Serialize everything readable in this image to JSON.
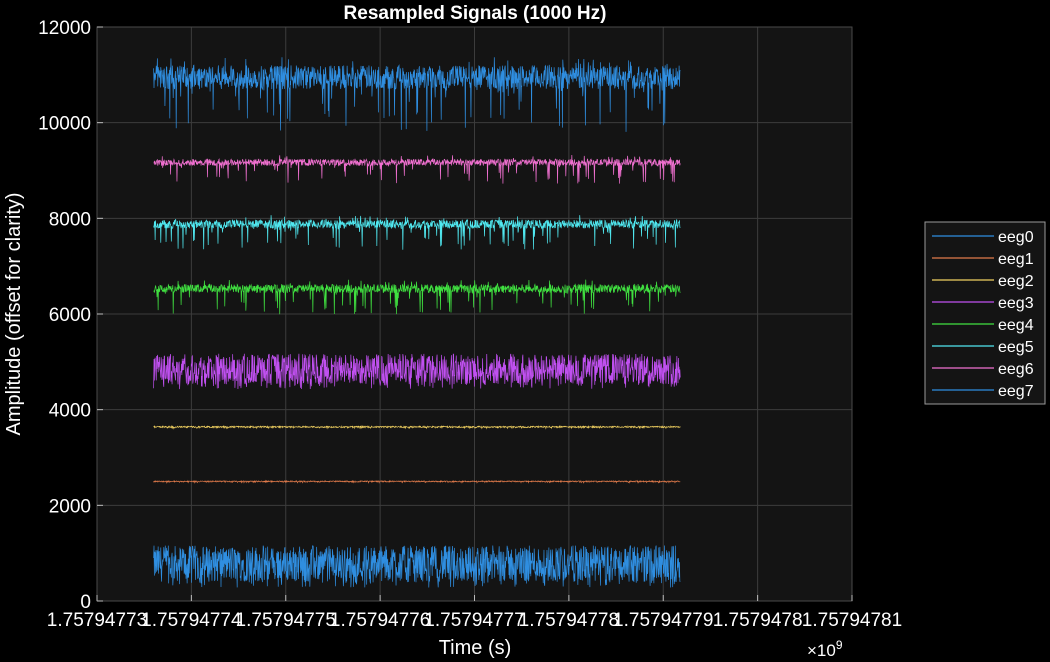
{
  "chart_data": {
    "type": "line",
    "title": "Resampled Signals (1000 Hz)",
    "xlabel": "Time (s)",
    "ylabel": "Amplitude (offset for clarity)",
    "x_exponent_label": "×10",
    "x_exponent_power": "9",
    "xlim": [
      1.75794773,
      1.75794781
    ],
    "ylim": [
      0,
      12000
    ],
    "x_ticks": [
      1.75794773,
      1.75794774,
      1.75794775,
      1.75794776,
      1.75794777,
      1.75794778,
      1.75794779,
      1.7579478,
      1.75794781
    ],
    "x_tick_labels": [
      "1.75794773",
      "1.75794774",
      "1.75794775",
      "1.75794776",
      "1.75794777",
      "1.75794778",
      "1.75794779",
      "1.7579478",
      "1.75794781"
    ],
    "y_ticks": [
      0,
      2000,
      4000,
      6000,
      8000,
      10000,
      12000
    ],
    "y_tick_labels": [
      "0",
      "2000",
      "4000",
      "6000",
      "8000",
      "10000",
      "12000"
    ],
    "x_data_range": [
      1.757947736,
      1.7579477918
    ],
    "grid": true,
    "background": "#141414",
    "legend_position": "outside-right",
    "series": [
      {
        "name": "eeg0",
        "color": "#2f8ee0",
        "center": 780,
        "spread": 380,
        "dip": 120
      },
      {
        "name": "eeg1",
        "color": "#e07a4a",
        "center": 2500,
        "spread": 12,
        "dip": 15
      },
      {
        "name": "eeg2",
        "color": "#f0d060",
        "center": 3640,
        "spread": 15,
        "dip": 15
      },
      {
        "name": "eeg3",
        "color": "#c050f0",
        "center": 4850,
        "spread": 320,
        "dip": 100
      },
      {
        "name": "eeg4",
        "color": "#40e040",
        "center": 6530,
        "spread": 90,
        "dip": 450
      },
      {
        "name": "eeg5",
        "color": "#50e8f0",
        "center": 7880,
        "spread": 90,
        "dip": 450
      },
      {
        "name": "eeg6",
        "color": "#f070d0",
        "center": 9170,
        "spread": 70,
        "dip": 380
      },
      {
        "name": "eeg7",
        "color": "#2f8ee0",
        "center": 10950,
        "spread": 250,
        "dip": 900
      }
    ]
  }
}
